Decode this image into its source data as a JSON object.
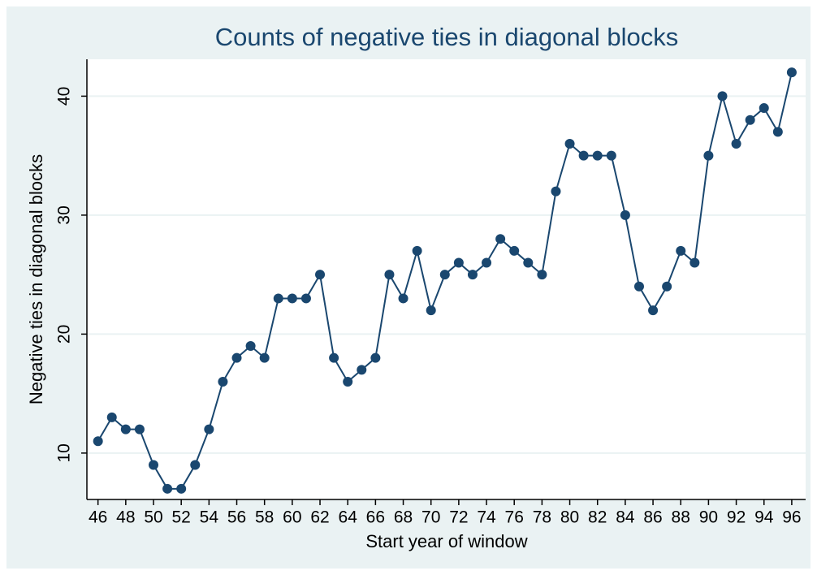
{
  "chart_data": {
    "type": "line",
    "title": "Counts of negative ties in diagonal blocks",
    "x_label": "Start year of window",
    "y_label": "Negative ties in diagonal blocks",
    "x": [
      46,
      47,
      48,
      49,
      50,
      51,
      52,
      53,
      54,
      55,
      56,
      57,
      58,
      59,
      60,
      61,
      62,
      63,
      64,
      65,
      66,
      67,
      68,
      69,
      70,
      71,
      72,
      73,
      74,
      75,
      76,
      77,
      78,
      79,
      80,
      81,
      82,
      83,
      84,
      85,
      86,
      87,
      88,
      89,
      90,
      91,
      92,
      93,
      94,
      95,
      96
    ],
    "series": [
      {
        "name": "Negative ties",
        "color": "#1a476f",
        "values": [
          11,
          13,
          12,
          12,
          9,
          7,
          7,
          9,
          12,
          16,
          18,
          19,
          18,
          23,
          23,
          23,
          25,
          18,
          16,
          17,
          18,
          25,
          23,
          27,
          22,
          25,
          26,
          25,
          26,
          28,
          27,
          26,
          25,
          32,
          36,
          35,
          35,
          35,
          30,
          24,
          22,
          24,
          27,
          26,
          35,
          40,
          36,
          38,
          39,
          37,
          42
        ]
      }
    ],
    "xlim": [
      45.2,
      97
    ],
    "xticks": [
      46,
      48,
      50,
      52,
      54,
      56,
      58,
      60,
      62,
      64,
      66,
      68,
      70,
      72,
      74,
      76,
      78,
      80,
      82,
      84,
      86,
      88,
      90,
      92,
      94,
      96
    ],
    "ylim": [
      6.1,
      43.1
    ],
    "yticks": [
      10,
      20,
      30,
      40
    ],
    "grid": true
  }
}
